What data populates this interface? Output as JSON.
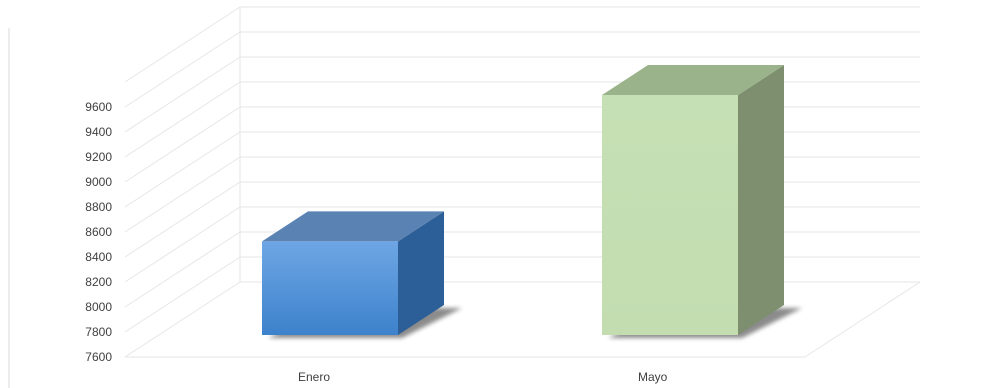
{
  "chart_data": {
    "type": "bar",
    "title": "",
    "xlabel": "",
    "ylabel": "",
    "categories": [
      "Enero",
      "Mayo"
    ],
    "values": [
      8380,
      9600
    ],
    "ylim": [
      7600,
      9800
    ],
    "yticks": [
      7600,
      7800,
      8000,
      8200,
      8400,
      8600,
      8800,
      9000,
      9200,
      9400,
      9600
    ],
    "grid": true,
    "legend": "none",
    "colors": {
      "Enero": {
        "front_top": "#6ea6e4",
        "front_bottom": "#3d82cc",
        "side": "#2c5f97",
        "top": "#5a82b3"
      },
      "Mayo": {
        "front": "#c5dfb4",
        "side": "#7d8f6f",
        "top": "#9bb38a"
      }
    }
  }
}
